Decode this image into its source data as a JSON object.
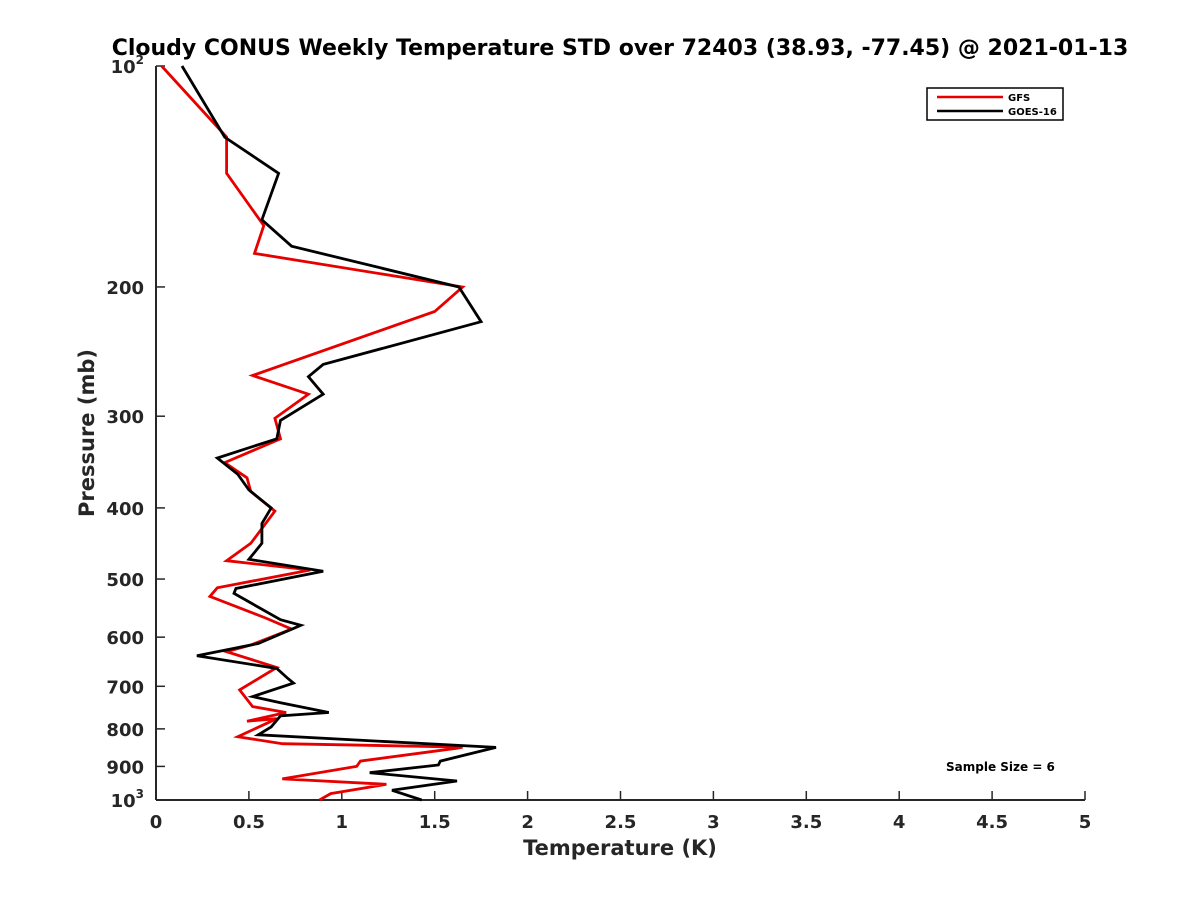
{
  "chart_data": {
    "type": "line",
    "title": "Cloudy CONUS Weekly Temperature STD over 72403 (38.93, -77.45) @ 2021-01-13",
    "xlabel": "Temperature (K)",
    "ylabel": "Pressure (mb)",
    "xlim": [
      0,
      5
    ],
    "ylim": [
      100,
      1000
    ],
    "y_scale": "log",
    "y_reversed": true,
    "grid": false,
    "legend_position": "top-right",
    "x_ticks": [
      0,
      0.5,
      1,
      1.5,
      2,
      2.5,
      3,
      3.5,
      4,
      4.5,
      5
    ],
    "x_tick_labels": [
      "0",
      "0.5",
      "1",
      "1.5",
      "2",
      "2.5",
      "3",
      "3.5",
      "4",
      "4.5",
      "5"
    ],
    "y_ticks": [
      100,
      200,
      300,
      400,
      500,
      600,
      700,
      800,
      900,
      1000
    ],
    "y_tick_labels": [
      {
        "base": "10",
        "exp": "2"
      },
      {
        "base": "200",
        "exp": ""
      },
      {
        "base": "300",
        "exp": ""
      },
      {
        "base": "400",
        "exp": ""
      },
      {
        "base": "500",
        "exp": ""
      },
      {
        "base": "600",
        "exp": ""
      },
      {
        "base": "700",
        "exp": ""
      },
      {
        "base": "800",
        "exp": ""
      },
      {
        "base": "900",
        "exp": ""
      },
      {
        "base": "10",
        "exp": "3"
      }
    ],
    "annotation": "Sample Size = 6",
    "series": [
      {
        "name": "GFS",
        "color": "#e60000",
        "points": [
          [
            0.03,
            100
          ],
          [
            0.38,
            125
          ],
          [
            0.38,
            140
          ],
          [
            0.58,
            165
          ],
          [
            0.53,
            180
          ],
          [
            1.65,
            200
          ],
          [
            1.5,
            216
          ],
          [
            0.52,
            264
          ],
          [
            0.82,
            280
          ],
          [
            0.64,
            302
          ],
          [
            0.67,
            322
          ],
          [
            0.37,
            347
          ],
          [
            0.49,
            364
          ],
          [
            0.51,
            380
          ],
          [
            0.64,
            404
          ],
          [
            0.51,
            447
          ],
          [
            0.38,
            472
          ],
          [
            0.83,
            486
          ],
          [
            0.33,
            514
          ],
          [
            0.29,
            528
          ],
          [
            0.59,
            565
          ],
          [
            0.73,
            585
          ],
          [
            0.51,
            615
          ],
          [
            0.38,
            628
          ],
          [
            0.65,
            660
          ],
          [
            0.45,
            708
          ],
          [
            0.52,
            746
          ],
          [
            0.7,
            760
          ],
          [
            0.49,
            781
          ],
          [
            0.65,
            775
          ],
          [
            0.44,
            820
          ],
          [
            0.68,
            838
          ],
          [
            1.65,
            847
          ],
          [
            1.62,
            850
          ],
          [
            1.1,
            885
          ],
          [
            1.08,
            900
          ],
          [
            0.68,
            936
          ],
          [
            1.24,
            952
          ],
          [
            0.94,
            980
          ],
          [
            0.88,
            1000
          ]
        ]
      },
      {
        "name": "GOES-16",
        "color": "#000000",
        "points": [
          [
            0.14,
            100
          ],
          [
            0.37,
            125
          ],
          [
            0.66,
            140
          ],
          [
            0.57,
            162
          ],
          [
            0.73,
            176
          ],
          [
            1.63,
            200
          ],
          [
            1.75,
            223
          ],
          [
            0.9,
            255
          ],
          [
            0.82,
            265
          ],
          [
            0.9,
            280
          ],
          [
            0.67,
            304
          ],
          [
            0.65,
            322
          ],
          [
            0.33,
            342
          ],
          [
            0.44,
            360
          ],
          [
            0.5,
            378
          ],
          [
            0.62,
            400
          ],
          [
            0.57,
            420
          ],
          [
            0.57,
            447
          ],
          [
            0.5,
            470
          ],
          [
            0.9,
            488
          ],
          [
            0.43,
            515
          ],
          [
            0.42,
            523
          ],
          [
            0.67,
            568
          ],
          [
            0.78,
            578
          ],
          [
            0.55,
            612
          ],
          [
            0.22,
            636
          ],
          [
            0.65,
            662
          ],
          [
            0.71,
            683
          ],
          [
            0.74,
            693
          ],
          [
            0.52,
            723
          ],
          [
            0.67,
            737
          ],
          [
            0.93,
            760
          ],
          [
            0.67,
            768
          ],
          [
            0.62,
            795
          ],
          [
            0.55,
            815
          ],
          [
            1.83,
            848
          ],
          [
            1.53,
            885
          ],
          [
            1.52,
            896
          ],
          [
            1.15,
            918
          ],
          [
            1.62,
            942
          ],
          [
            1.27,
            970
          ],
          [
            1.43,
            1000
          ]
        ]
      }
    ]
  }
}
